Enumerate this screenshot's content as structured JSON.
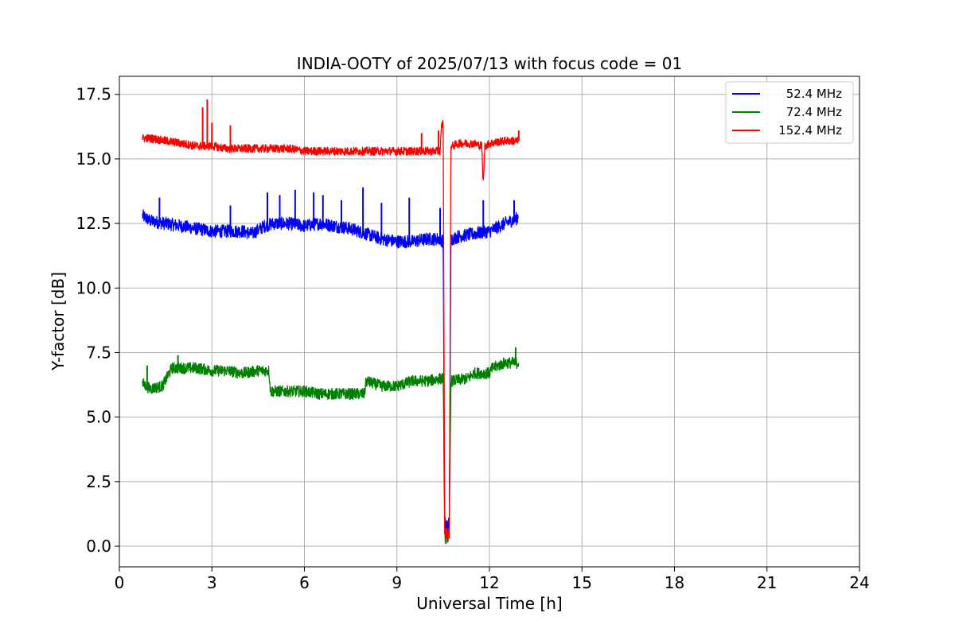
{
  "chart_data": {
    "type": "line",
    "title": "INDIA-OOTY of 2025/07/13 with focus code = 01",
    "xlabel": "Universal Time [h]",
    "ylabel": "Y-factor [dB]",
    "xlim": [
      0,
      24
    ],
    "ylim": [
      -0.8,
      18.2
    ],
    "xticks": [
      0,
      3,
      6,
      9,
      12,
      15,
      18,
      21,
      24
    ],
    "xtick_labels": [
      "0",
      "3",
      "6",
      "9",
      "12",
      "15",
      "18",
      "21",
      "24"
    ],
    "yticks": [
      0,
      2.5,
      5,
      7.5,
      10,
      12.5,
      15,
      17.5
    ],
    "ytick_labels": [
      "0.0",
      "2.5",
      "5.0",
      "7.5",
      "10.0",
      "12.5",
      "15.0",
      "17.5"
    ],
    "grid": true,
    "legend_position": "top-right",
    "series": [
      {
        "name": "52.4 MHz",
        "color": "#0000ff",
        "noise": 0.25,
        "x": [
          0.75,
          1.0,
          1.5,
          2.0,
          2.5,
          3.0,
          3.5,
          4.0,
          4.3,
          4.7,
          5.0,
          5.5,
          6.0,
          6.5,
          7.0,
          7.5,
          8.0,
          8.5,
          9.0,
          9.5,
          10.0,
          10.4,
          10.5,
          10.55,
          10.7,
          10.75,
          10.8,
          11.0,
          11.5,
          12.0,
          12.5,
          12.9,
          12.95
        ],
        "y": [
          12.8,
          12.6,
          12.5,
          12.4,
          12.3,
          12.2,
          12.2,
          12.2,
          12.1,
          12.4,
          12.5,
          12.5,
          12.4,
          12.5,
          12.4,
          12.3,
          12.1,
          11.9,
          11.8,
          11.8,
          11.9,
          11.9,
          11.8,
          0.8,
          0.8,
          11.9,
          11.9,
          12.0,
          12.1,
          12.2,
          12.5,
          12.7,
          12.9
        ],
        "spikes": [
          [
            1.3,
            13.5
          ],
          [
            3.6,
            13.2
          ],
          [
            4.8,
            13.7
          ],
          [
            5.2,
            13.6
          ],
          [
            5.7,
            13.8
          ],
          [
            6.3,
            13.7
          ],
          [
            6.6,
            13.6
          ],
          [
            7.2,
            13.4
          ],
          [
            7.9,
            13.9
          ],
          [
            8.5,
            13.3
          ],
          [
            9.4,
            13.5
          ],
          [
            10.4,
            13.1
          ],
          [
            11.8,
            13.4
          ],
          [
            12.8,
            13.4
          ]
        ]
      },
      {
        "name": "72.4 MHz",
        "color": "#008000",
        "noise": 0.22,
        "x": [
          0.75,
          1.0,
          1.4,
          1.7,
          2.0,
          2.5,
          3.0,
          3.5,
          4.0,
          4.5,
          4.85,
          4.9,
          5.5,
          6.0,
          6.5,
          7.0,
          7.5,
          7.95,
          8.0,
          8.5,
          9.0,
          9.5,
          10.0,
          10.45,
          10.5,
          10.55,
          10.7,
          10.75,
          10.8,
          11.3,
          11.5,
          12.0,
          12.1,
          12.5,
          12.9,
          12.95
        ],
        "y": [
          6.3,
          6.1,
          6.2,
          6.9,
          6.9,
          6.9,
          6.8,
          6.8,
          6.7,
          6.8,
          6.8,
          6.0,
          6.0,
          6.0,
          5.9,
          5.9,
          5.9,
          5.9,
          6.4,
          6.2,
          6.2,
          6.4,
          6.4,
          6.5,
          6.5,
          0.4,
          0.4,
          6.4,
          6.4,
          6.5,
          6.7,
          6.7,
          6.9,
          7.1,
          7.1,
          7.1
        ],
        "spikes": [
          [
            0.9,
            7.0
          ],
          [
            1.9,
            7.4
          ],
          [
            12.85,
            7.7
          ]
        ]
      },
      {
        "name": "152.4 MHz",
        "color": "#ff0000",
        "noise": 0.16,
        "x": [
          0.75,
          1.0,
          1.5,
          2.0,
          2.5,
          3.0,
          3.5,
          4.0,
          4.5,
          5.0,
          5.5,
          6.0,
          6.5,
          7.0,
          7.5,
          8.0,
          8.5,
          9.0,
          9.5,
          10.0,
          10.4,
          10.45,
          10.5,
          10.55,
          10.7,
          10.75,
          10.8,
          11.0,
          11.5,
          11.75,
          11.8,
          11.85,
          12.0,
          12.5,
          12.95
        ],
        "y": [
          15.8,
          15.8,
          15.7,
          15.6,
          15.5,
          15.5,
          15.4,
          15.4,
          15.4,
          15.4,
          15.4,
          15.3,
          15.3,
          15.3,
          15.3,
          15.3,
          15.3,
          15.3,
          15.3,
          15.3,
          15.3,
          16.3,
          16.4,
          0.5,
          0.5,
          15.5,
          15.5,
          15.6,
          15.6,
          15.5,
          14.0,
          15.5,
          15.6,
          15.7,
          15.7
        ],
        "spikes": [
          [
            2.7,
            17.0
          ],
          [
            2.85,
            17.3
          ],
          [
            3.0,
            16.4
          ],
          [
            3.6,
            16.3
          ],
          [
            9.8,
            16.0
          ],
          [
            10.35,
            16.1
          ],
          [
            12.95,
            16.1
          ]
        ]
      }
    ]
  }
}
